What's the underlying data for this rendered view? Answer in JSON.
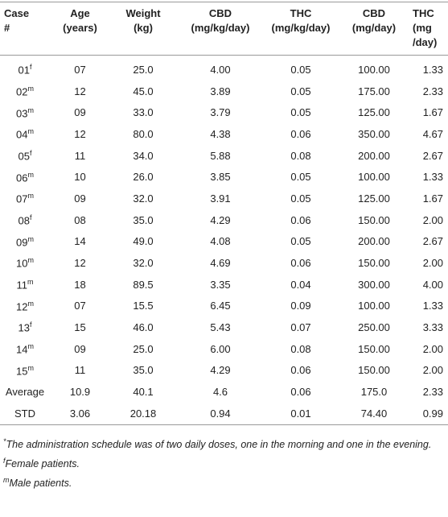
{
  "table": {
    "header": [
      [
        "Case",
        "#"
      ],
      [
        "Age",
        "(years)"
      ],
      [
        "Weight",
        "(kg)"
      ],
      [
        "CBD",
        "(mg/kg/day)"
      ],
      [
        "THC",
        "(mg/kg/day)"
      ],
      [
        "CBD",
        "(mg/day)"
      ],
      [
        "THC",
        "(mg",
        "/day)"
      ]
    ],
    "rows": [
      [
        {
          "id": "01",
          "sup": "f"
        },
        "07",
        "25.0",
        "4.00",
        "0.05",
        "100.00",
        "1.33"
      ],
      [
        {
          "id": "02",
          "sup": "m"
        },
        "12",
        "45.0",
        "3.89",
        "0.05",
        "175.00",
        "2.33"
      ],
      [
        {
          "id": "03",
          "sup": "m"
        },
        "09",
        "33.0",
        "3.79",
        "0.05",
        "125.00",
        "1.67"
      ],
      [
        {
          "id": "04",
          "sup": "m"
        },
        "12",
        "80.0",
        "4.38",
        "0.06",
        "350.00",
        "4.67"
      ],
      [
        {
          "id": "05",
          "sup": "f"
        },
        "11",
        "34.0",
        "5.88",
        "0.08",
        "200.00",
        "2.67"
      ],
      [
        {
          "id": "06",
          "sup": "m"
        },
        "10",
        "26.0",
        "3.85",
        "0.05",
        "100.00",
        "1.33"
      ],
      [
        {
          "id": "07",
          "sup": "m"
        },
        "09",
        "32.0",
        "3.91",
        "0.05",
        "125.00",
        "1.67"
      ],
      [
        {
          "id": "08",
          "sup": "f"
        },
        "08",
        "35.0",
        "4.29",
        "0.06",
        "150.00",
        "2.00"
      ],
      [
        {
          "id": "09",
          "sup": "m"
        },
        "14",
        "49.0",
        "4.08",
        "0.05",
        "200.00",
        "2.67"
      ],
      [
        {
          "id": "10",
          "sup": "m"
        },
        "12",
        "32.0",
        "4.69",
        "0.06",
        "150.00",
        "2.00"
      ],
      [
        {
          "id": "11",
          "sup": "m"
        },
        "18",
        "89.5",
        "3.35",
        "0.04",
        "300.00",
        "4.00"
      ],
      [
        {
          "id": "12",
          "sup": "m"
        },
        "07",
        "15.5",
        "6.45",
        "0.09",
        "100.00",
        "1.33"
      ],
      [
        {
          "id": "13",
          "sup": "f"
        },
        "15",
        "46.0",
        "5.43",
        "0.07",
        "250.00",
        "3.33"
      ],
      [
        {
          "id": "14",
          "sup": "m"
        },
        "09",
        "25.0",
        "6.00",
        "0.08",
        "150.00",
        "2.00"
      ],
      [
        {
          "id": "15",
          "sup": "m"
        },
        "11",
        "35.0",
        "4.29",
        "0.06",
        "150.00",
        "2.00"
      ],
      [
        "Average",
        "10.9",
        "40.1",
        "4.6",
        "0.06",
        "175.0",
        "2.33"
      ],
      [
        "STD",
        "3.06",
        "20.18",
        "0.94",
        "0.01",
        "74.40",
        "0.99"
      ]
    ]
  },
  "footnotes": [
    {
      "mark": "*",
      "text": "The administration schedule was of two daily doses, one in the morning and one in the evening."
    },
    {
      "mark": "f",
      "text": "Female patients."
    },
    {
      "mark": "m",
      "text": "Male patients."
    }
  ]
}
